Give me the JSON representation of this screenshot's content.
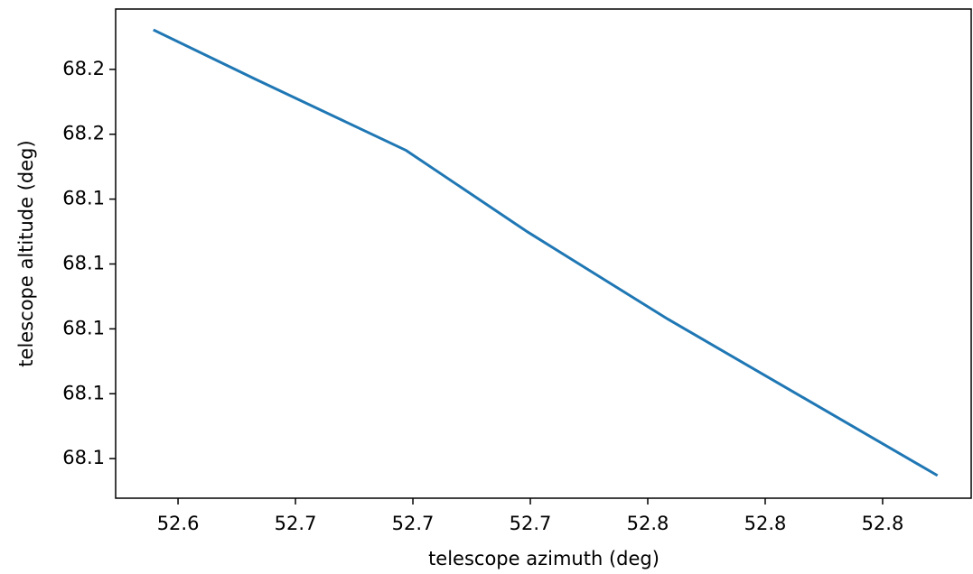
{
  "chart_data": {
    "type": "line",
    "x_label": "telescope azimuth (deg)",
    "y_label": "telescope altitude (deg)",
    "x": [
      52.623,
      52.653,
      52.698,
      52.734,
      52.776,
      52.856
    ],
    "series": [
      {
        "color": "#1f77b4",
        "values": [
          68.192,
          68.177,
          68.155,
          68.13,
          68.103,
          68.055
        ]
      }
    ],
    "xlim": [
      52.6114,
      52.8664
    ],
    "ylim": [
      68.0478,
      68.1986
    ],
    "xticks": [
      {
        "value": 52.63,
        "label": "52.6"
      },
      {
        "value": 52.665,
        "label": "52.7"
      },
      {
        "value": 52.7,
        "label": "52.7"
      },
      {
        "value": 52.735,
        "label": "52.7"
      },
      {
        "value": 52.77,
        "label": "52.8"
      },
      {
        "value": 52.805,
        "label": "52.8"
      },
      {
        "value": 52.84,
        "label": "52.8"
      }
    ],
    "yticks": [
      {
        "value": 68.06,
        "label": "68.1"
      },
      {
        "value": 68.08,
        "label": "68.1"
      },
      {
        "value": 68.1,
        "label": "68.1"
      },
      {
        "value": 68.12,
        "label": "68.1"
      },
      {
        "value": 68.14,
        "label": "68.1"
      },
      {
        "value": 68.16,
        "label": "68.2"
      },
      {
        "value": 68.18,
        "label": "68.2"
      }
    ],
    "grid": false
  }
}
